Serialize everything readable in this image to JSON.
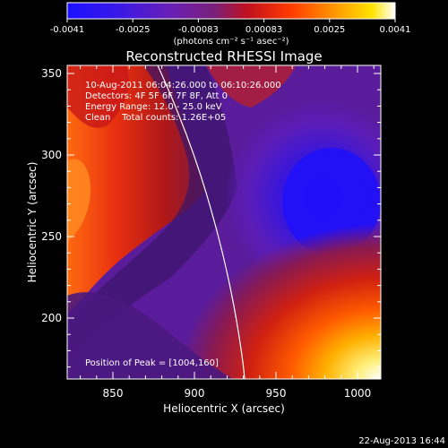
{
  "colorbar": {
    "ticks": [
      "-0.0041",
      "-0.0025",
      "-0.00083",
      "0.00083",
      "0.0025",
      "0.0041"
    ],
    "units": "(photons cm⁻² s⁻¹ asec⁻²)"
  },
  "title": "Reconstructed RHESSI Image",
  "info": {
    "line1": "10-Aug-2011 06:04:26.000 to 06:10:26.000",
    "line2": "Detectors: 4F 5F 6F 7F 8F, Att 0",
    "line3": "Energy Range: 12.0 - 25.0 keV",
    "line4": "Clean    Total counts: 1.26E+05"
  },
  "peak_label": "Position of Peak = [1004,160]",
  "axes": {
    "xlabel": "Heliocentric X (arcsec)",
    "ylabel": "Heliocentric Y (arcsec)",
    "xticks": [
      "850",
      "900",
      "950",
      "1000"
    ],
    "yticks": [
      "200",
      "250",
      "300",
      "350"
    ]
  },
  "timestamp": "22-Aug-2013 16:44",
  "colors": {
    "background": "#000000",
    "foreground": "#ffffff",
    "limb_line": "#ffffff"
  }
}
